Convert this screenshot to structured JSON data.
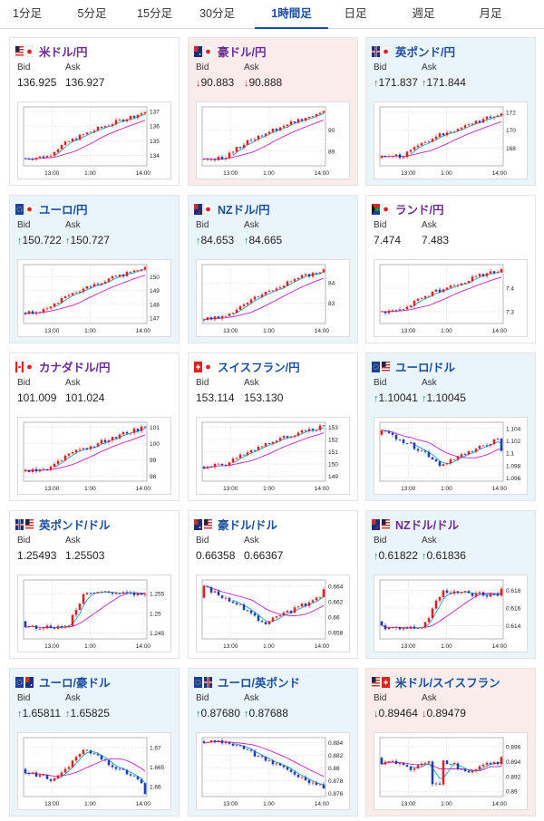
{
  "tabs": [
    {
      "label": "1分足",
      "active": false
    },
    {
      "label": "5分足",
      "active": false
    },
    {
      "label": "15分足",
      "active": false
    },
    {
      "label": "30分足",
      "active": false
    },
    {
      "label": "1時間足",
      "active": true
    },
    {
      "label": "日足",
      "active": false
    },
    {
      "label": "週足",
      "active": false
    },
    {
      "label": "月足",
      "active": false
    }
  ],
  "labels": {
    "bid": "Bid",
    "ask": "Ask"
  },
  "colors": {
    "up": "#1a8f6a",
    "down": "#cc2a2a",
    "bull": "#e02020",
    "bear": "#1a3fb0",
    "ma_short": "#1aa0c8",
    "ma_long": "#c020c0"
  },
  "cards": [
    {
      "pair": "米ドル/円",
      "flag": "us-jp-flag",
      "trend": "neutral",
      "bid": "136.925",
      "ask": "136.927",
      "arrow": "",
      "chart_data": {
        "type": "candlestick",
        "x_ticks": [
          "13:00",
          "1:00",
          "14:00"
        ],
        "y_ticks": [
          "137",
          "136",
          "135",
          "134"
        ],
        "ylim": [
          133.3,
          137.3
        ],
        "start": 133.8,
        "end": 136.95,
        "shape": "rise"
      }
    },
    {
      "pair": "豪ドル/円",
      "flag": "au-jp-flag",
      "trend": "down",
      "bid": "90.883",
      "ask": "90.888",
      "arrow": "down",
      "chart_data": {
        "type": "candlestick",
        "x_ticks": [
          "13:00",
          "1:00",
          "14:00"
        ],
        "y_ticks": [
          "90",
          "89"
        ],
        "ylim": [
          88.3,
          91.1
        ],
        "start": 88.6,
        "end": 90.9,
        "shape": "rise"
      }
    },
    {
      "pair": "英ポンド/円",
      "flag": "gb-jp-flag",
      "trend": "up",
      "bid": "171.837",
      "ask": "171.844",
      "arrow": "up",
      "chart_data": {
        "type": "candlestick",
        "x_ticks": [
          "13:00",
          "1:00",
          "14:00"
        ],
        "y_ticks": [
          "172",
          "170",
          "168"
        ],
        "ylim": [
          166.0,
          172.6
        ],
        "start": 166.9,
        "end": 171.85,
        "shape": "rise"
      }
    },
    {
      "pair": "ユーロ/円",
      "flag": "eu-jp-flag",
      "trend": "up",
      "bid": "150.722",
      "ask": "150.727",
      "arrow": "up",
      "chart_data": {
        "type": "candlestick",
        "x_ticks": [
          "13:00",
          "1:00",
          "14:00"
        ],
        "y_ticks": [
          "150",
          "149",
          "148",
          "147"
        ],
        "ylim": [
          146.6,
          150.9
        ],
        "start": 147.4,
        "end": 150.72,
        "shape": "rise"
      }
    },
    {
      "pair": "NZドル/円",
      "flag": "nz-jp-flag",
      "trend": "up",
      "bid": "84.653",
      "ask": "84.665",
      "arrow": "up",
      "chart_data": {
        "type": "candlestick",
        "x_ticks": [
          "13:00",
          "1:00",
          "14:00"
        ],
        "y_ticks": [
          "84",
          "83"
        ],
        "ylim": [
          82.0,
          84.9
        ],
        "start": 82.2,
        "end": 84.66,
        "shape": "rise"
      }
    },
    {
      "pair": "ランド/円",
      "flag": "za-jp-flag",
      "trend": "neutral",
      "bid": "7.474",
      "ask": "7.483",
      "arrow": "",
      "chart_data": {
        "type": "candlestick",
        "x_ticks": [
          "13:00",
          "1:00",
          "14:00"
        ],
        "y_ticks": [
          "7.4",
          "7.3"
        ],
        "ylim": [
          7.25,
          7.5
        ],
        "start": 7.3,
        "end": 7.48,
        "shape": "rise"
      }
    },
    {
      "pair": "カナダドル/円",
      "flag": "ca-jp-flag",
      "trend": "neutral",
      "bid": "101.009",
      "ask": "101.024",
      "arrow": "",
      "chart_data": {
        "type": "candlestick",
        "x_ticks": [
          "13:00",
          "1:00",
          "14:00"
        ],
        "y_ticks": [
          "101",
          "100",
          "99",
          "98"
        ],
        "ylim": [
          97.7,
          101.3
        ],
        "start": 98.3,
        "end": 101.0,
        "shape": "rise"
      }
    },
    {
      "pair": "スイスフラン/円",
      "flag": "ch-jp-flag",
      "trend": "neutral",
      "bid": "153.114",
      "ask": "153.130",
      "arrow": "",
      "chart_data": {
        "type": "candlestick",
        "x_ticks": [
          "13:00",
          "1:00",
          "14:00"
        ],
        "y_ticks": [
          "153",
          "152",
          "151",
          "150",
          "149"
        ],
        "ylim": [
          148.6,
          153.4
        ],
        "start": 149.8,
        "end": 153.1,
        "shape": "rise"
      }
    },
    {
      "pair": "ユーロ/ドル",
      "flag": "eu-us-flag",
      "trend": "up",
      "bid": "1.10041",
      "ask": "1.10045",
      "arrow": "up",
      "chart_data": {
        "type": "candlestick",
        "x_ticks": [
          "13:00",
          "1:00",
          "14:00"
        ],
        "y_ticks": [
          "1.104",
          "1.102",
          "1.1",
          "1.098",
          "1.096"
        ],
        "ylim": [
          1.0955,
          1.105
        ],
        "start": 1.103,
        "end": 1.1004,
        "shape": "dip"
      }
    },
    {
      "pair": "英ポンド/ドル",
      "flag": "gb-us-flag",
      "trend": "neutral",
      "bid": "1.25493",
      "ask": "1.25503",
      "arrow": "",
      "chart_data": {
        "type": "candlestick",
        "x_ticks": [
          "13:00",
          "1:00",
          "14:00"
        ],
        "y_ticks": [
          "1.255",
          "1.25",
          "1.245"
        ],
        "ylim": [
          1.2435,
          1.2585
        ],
        "start": 1.248,
        "end": 1.2549,
        "shape": "jump"
      }
    },
    {
      "pair": "豪ドル/ドル",
      "flag": "au-us-flag",
      "trend": "neutral",
      "bid": "0.66358",
      "ask": "0.66367",
      "arrow": "",
      "chart_data": {
        "type": "candlestick",
        "x_ticks": [
          "13:00",
          "1:00",
          "14:00"
        ],
        "y_ticks": [
          "0.664",
          "0.662",
          "0.66",
          "0.658"
        ],
        "ylim": [
          0.6572,
          0.6648
        ],
        "start": 0.6625,
        "end": 0.6636,
        "shape": "dip"
      }
    },
    {
      "pair": "NZドル/ドル",
      "flag": "nz-us-flag",
      "trend": "up",
      "bid": "0.61822",
      "ask": "0.61836",
      "arrow": "up",
      "chart_data": {
        "type": "candlestick",
        "x_ticks": [
          "13:00",
          "1:00",
          "14:00"
        ],
        "y_ticks": [
          "0.618",
          "0.616",
          "0.614"
        ],
        "ylim": [
          0.6125,
          0.6192
        ],
        "start": 0.6145,
        "end": 0.6182,
        "shape": "jump"
      }
    },
    {
      "pair": "ユーロ/豪ドル",
      "flag": "eu-au-flag",
      "trend": "up",
      "bid": "1.65811",
      "ask": "1.65825",
      "arrow": "up",
      "chart_data": {
        "type": "candlestick",
        "x_ticks": [
          "13:00",
          "1:00",
          "14:00"
        ],
        "y_ticks": [
          "1.67",
          "1.665",
          "1.66"
        ],
        "ylim": [
          1.6575,
          1.6725
        ],
        "start": 1.6645,
        "end": 1.6581,
        "shape": "hump"
      }
    },
    {
      "pair": "ユーロ/英ポンド",
      "flag": "eu-gb-flag",
      "trend": "up",
      "bid": "0.87680",
      "ask": "0.87688",
      "arrow": "up",
      "chart_data": {
        "type": "candlestick",
        "x_ticks": [
          "13:00",
          "1:00",
          "14:00"
        ],
        "y_ticks": [
          "0.884",
          "0.882",
          "0.88",
          "0.878",
          "0.876"
        ],
        "ylim": [
          0.8755,
          0.8848
        ],
        "start": 0.8842,
        "end": 0.8768,
        "shape": "fall"
      }
    },
    {
      "pair": "米ドル/スイスフラン",
      "flag": "us-ch-flag",
      "trend": "down",
      "bid": "0.89464",
      "ask": "0.89479",
      "arrow": "down",
      "chart_data": {
        "type": "candlestick",
        "x_ticks": [
          "13:00",
          "1:00",
          "14:00"
        ],
        "y_ticks": [
          "0.896",
          "0.894",
          "0.892",
          "0.89"
        ],
        "ylim": [
          0.8893,
          0.8972
        ],
        "start": 0.8945,
        "end": 0.8946,
        "shape": "spike"
      }
    }
  ]
}
